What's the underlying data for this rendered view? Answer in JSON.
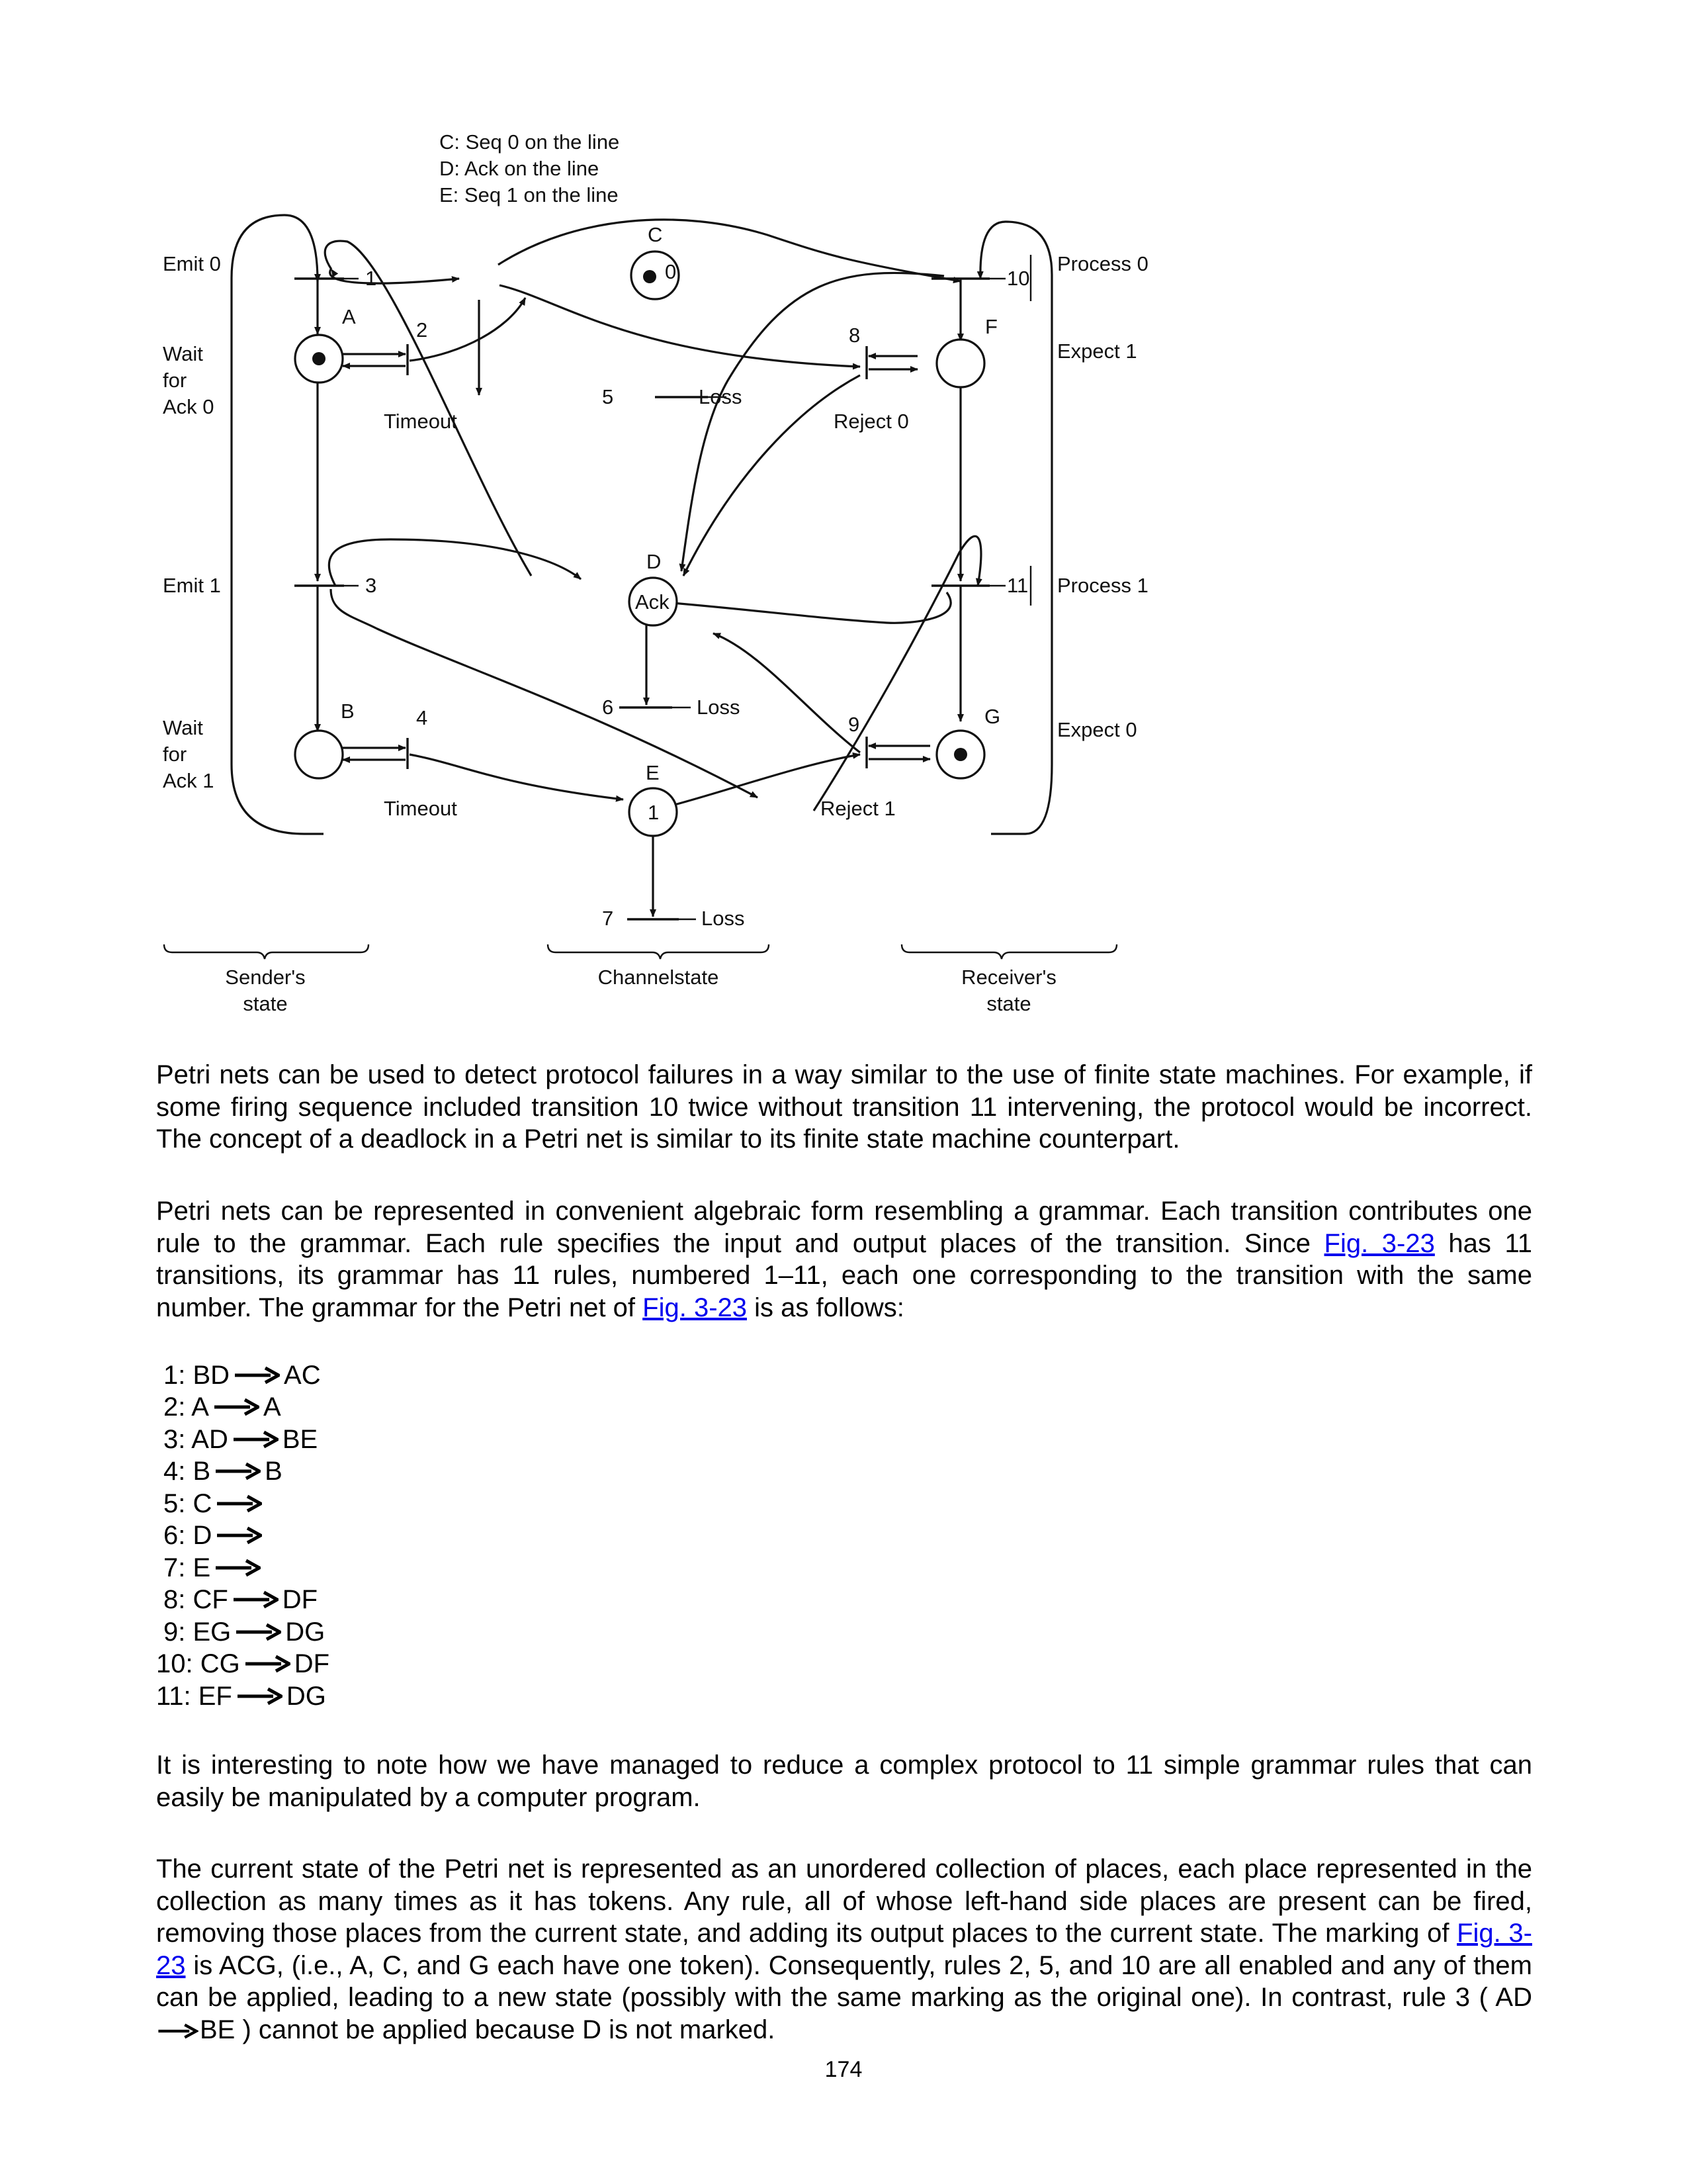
{
  "figure": {
    "legend": [
      "C: Seq 0 on the line",
      "D: Ack on the line",
      "E: Seq 1 on the line"
    ],
    "places": {
      "A": {
        "name": "A",
        "token": true,
        "inner": ""
      },
      "B": {
        "name": "B",
        "token": false,
        "inner": ""
      },
      "C": {
        "name": "C",
        "token": true,
        "inner": "0"
      },
      "D": {
        "name": "D",
        "token": false,
        "inner": "Ack"
      },
      "E": {
        "name": "E",
        "token": false,
        "inner": "1"
      },
      "F": {
        "name": "F",
        "token": false,
        "inner": ""
      },
      "G": {
        "name": "G",
        "token": true,
        "inner": ""
      }
    },
    "transitions": [
      "1",
      "2",
      "3",
      "4",
      "5",
      "6",
      "7",
      "8",
      "9",
      "10",
      "11"
    ],
    "labels": {
      "emit0": "Emit 0",
      "emit1": "Emit 1",
      "wait0": [
        "Wait",
        "for",
        "Ack 0"
      ],
      "wait1": [
        "Wait",
        "for",
        "Ack 1"
      ],
      "timeout": "Timeout",
      "loss": "Loss",
      "reject0": "Reject 0",
      "reject1": "Reject 1",
      "process0": "Process 0",
      "process1": "Process 1",
      "expect1": "Expect 1",
      "expect0": "Expect 0",
      "sender": [
        "Sender's",
        "state"
      ],
      "channel": "Channelstate",
      "receiver": [
        "Receiver's",
        "state"
      ]
    }
  },
  "para1": "Petri nets can be used to detect protocol failures in a way similar to the use of finite state machines. For example, if some firing sequence included transition 10 twice without transition 11 intervening, the protocol would be incorrect. The concept of a deadlock in a Petri net is similar to its finite state machine counterpart.",
  "para2": {
    "t1": "Petri nets can be represented in convenient algebraic form resembling a grammar. Each transition contributes one rule to the grammar. Each rule specifies the input and output places of the transition. Since ",
    "link1": "Fig. 3-23",
    "t2": " has 11 transitions, its grammar has 11 rules, numbered 1–11, each one corresponding to the transition with the same number. The grammar for the Petri net of ",
    "link2": "Fig. 3-23",
    "t3": " is as follows:"
  },
  "rules": [
    {
      "lhs": "1: BD",
      "rhs": "AC"
    },
    {
      "lhs": "2: A",
      "rhs": "A"
    },
    {
      "lhs": "3: AD",
      "rhs": "BE"
    },
    {
      "lhs": "4: B",
      "rhs": "B"
    },
    {
      "lhs": "5: C",
      "rhs": ""
    },
    {
      "lhs": "6: D",
      "rhs": ""
    },
    {
      "lhs": "7: E",
      "rhs": ""
    },
    {
      "lhs": "8: CF",
      "rhs": "DF"
    },
    {
      "lhs": "9: EG",
      "rhs": "DG"
    },
    {
      "lhs": "10: CG",
      "rhs": "DF"
    },
    {
      "lhs": "11: EF",
      "rhs": "DG"
    }
  ],
  "para3": "It is interesting to note how we have managed to reduce a complex protocol to 11 simple grammar rules that can easily be manipulated by a computer program.",
  "para4": {
    "t1": "The current state of the Petri net is represented as an unordered collection of places, each place represented in the collection as many times as it has tokens. Any rule, all of whose left-hand side places are present can be fired, removing those places from the current state, and adding its output places to the current state. The marking of ",
    "link": "Fig. 3-23",
    "t2": " is ACG, (i.e., A, C, and G each have one token). Consequently, rules 2, 5, and 10 are all enabled and any of them can be applied, leading to a new state (possibly with the same marking as the original one). In contrast, rule 3 ( AD ",
    "t3": "BE ) cannot be applied because D is not marked."
  },
  "page_number": "174"
}
